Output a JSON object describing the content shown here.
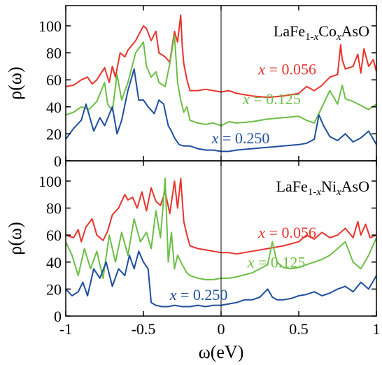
{
  "chart_data": [
    {
      "type": "line",
      "panel": "top",
      "title_parts": [
        "LaFe",
        "1-",
        "x",
        "Co",
        "x",
        "AsO"
      ],
      "ylabel": "ρ(ω)",
      "xlabel": "",
      "xlim": [
        -1,
        1
      ],
      "ylim": [
        0,
        115
      ],
      "yticks": [
        0,
        20,
        40,
        60,
        80,
        100
      ],
      "xticks": [
        -1,
        -0.5,
        0,
        0.5,
        1
      ],
      "vline_x": 0,
      "grid": false,
      "series": [
        {
          "name": "x = 0.056",
          "label_x": "x",
          "label_rest": " = 0.056",
          "color": "#e8342c",
          "x": [
            -1,
            -0.95,
            -0.9,
            -0.86,
            -0.83,
            -0.8,
            -0.75,
            -0.72,
            -0.7,
            -0.68,
            -0.65,
            -0.62,
            -0.6,
            -0.55,
            -0.5,
            -0.48,
            -0.45,
            -0.42,
            -0.4,
            -0.36,
            -0.33,
            -0.3,
            -0.28,
            -0.26,
            -0.25,
            -0.24,
            -0.22,
            -0.2,
            -0.15,
            -0.1,
            -0.05,
            0,
            0.05,
            0.1,
            0.2,
            0.3,
            0.4,
            0.5,
            0.55,
            0.6,
            0.65,
            0.7,
            0.75,
            0.77,
            0.78,
            0.8,
            0.85,
            0.88,
            0.9,
            0.92,
            0.95,
            0.98,
            1
          ],
          "y": [
            55,
            56,
            60,
            62,
            57,
            60,
            69,
            58,
            70,
            62,
            80,
            77,
            82,
            89,
            100,
            98,
            89,
            96,
            80,
            77,
            73,
            96,
            88,
            108,
            85,
            72,
            60,
            52,
            52,
            53,
            52,
            51,
            52,
            50,
            48,
            47,
            48,
            50,
            55,
            52,
            56,
            62,
            64,
            86,
            75,
            68,
            70,
            79,
            65,
            83,
            70,
            75,
            66
          ]
        },
        {
          "name": "x = 0.125",
          "label_x": "x",
          "label_rest": " = 0.125",
          "color": "#6cbe45",
          "x": [
            -1,
            -0.95,
            -0.9,
            -0.85,
            -0.8,
            -0.75,
            -0.73,
            -0.7,
            -0.67,
            -0.64,
            -0.6,
            -0.55,
            -0.5,
            -0.48,
            -0.45,
            -0.42,
            -0.4,
            -0.36,
            -0.33,
            -0.3,
            -0.28,
            -0.26,
            -0.24,
            -0.22,
            -0.2,
            -0.15,
            -0.1,
            -0.05,
            0,
            0.05,
            0.1,
            0.2,
            0.3,
            0.4,
            0.5,
            0.55,
            0.6,
            0.65,
            0.7,
            0.75,
            0.78,
            0.8,
            0.85,
            0.9,
            0.95,
            1
          ],
          "y": [
            34,
            36,
            40,
            38,
            44,
            58,
            42,
            37,
            64,
            45,
            58,
            80,
            88,
            70,
            62,
            66,
            58,
            55,
            72,
            93,
            58,
            45,
            36,
            40,
            30,
            28,
            27,
            28,
            26,
            29,
            28,
            29,
            31,
            32,
            33,
            30,
            28,
            40,
            52,
            42,
            56,
            46,
            44,
            41,
            38,
            42
          ]
        },
        {
          "name": "x = 0.250",
          "label_x": "x",
          "label_rest": " = 0.250",
          "color": "#1f4e9e",
          "x": [
            -1,
            -0.95,
            -0.9,
            -0.87,
            -0.82,
            -0.78,
            -0.75,
            -0.7,
            -0.67,
            -0.64,
            -0.6,
            -0.56,
            -0.53,
            -0.5,
            -0.47,
            -0.43,
            -0.4,
            -0.37,
            -0.34,
            -0.32,
            -0.3,
            -0.27,
            -0.24,
            -0.2,
            -0.15,
            -0.1,
            -0.05,
            0,
            0.05,
            0.1,
            0.2,
            0.3,
            0.4,
            0.5,
            0.55,
            0.6,
            0.63,
            0.66,
            0.7,
            0.75,
            0.8,
            0.85,
            0.9,
            0.95,
            1
          ],
          "y": [
            16,
            24,
            30,
            42,
            22,
            32,
            26,
            40,
            20,
            30,
            52,
            68,
            45,
            45,
            40,
            35,
            45,
            42,
            26,
            22,
            17,
            12,
            11,
            11,
            9,
            8,
            8,
            7,
            7,
            8,
            9,
            10,
            11,
            12,
            13,
            16,
            34,
            26,
            18,
            15,
            20,
            14,
            17,
            22,
            12
          ]
        }
      ],
      "annotation_values": [
        {
          "x": 0.24,
          "y": 64
        },
        {
          "x": 0.14,
          "y": 42
        },
        {
          "x": -0.06,
          "y": 13
        }
      ]
    },
    {
      "type": "line",
      "panel": "bottom",
      "title_parts": [
        "LaFe",
        "1-",
        "x",
        "Ni",
        "x",
        "AsO"
      ],
      "ylabel": "ρ(ω)",
      "xlabel": "ω(eV)",
      "xlim": [
        -1,
        1
      ],
      "ylim": [
        0,
        115
      ],
      "yticks": [
        0,
        20,
        40,
        60,
        80,
        100
      ],
      "xticks": [
        -1,
        -0.5,
        0,
        0.5,
        1
      ],
      "xtick_labels": [
        "-1",
        "-0.5",
        "0",
        "0.5",
        "1"
      ],
      "vline_x": 0,
      "grid": false,
      "series": [
        {
          "name": "x = 0.056",
          "label_x": "x",
          "label_rest": " = 0.056",
          "color": "#e8342c",
          "x": [
            -1,
            -0.95,
            -0.92,
            -0.9,
            -0.87,
            -0.83,
            -0.8,
            -0.76,
            -0.73,
            -0.7,
            -0.66,
            -0.62,
            -0.6,
            -0.57,
            -0.54,
            -0.51,
            -0.48,
            -0.45,
            -0.42,
            -0.39,
            -0.36,
            -0.33,
            -0.3,
            -0.28,
            -0.26,
            -0.24,
            -0.22,
            -0.2,
            -0.15,
            -0.1,
            -0.05,
            0,
            0.05,
            0.1,
            0.2,
            0.3,
            0.4,
            0.5,
            0.55,
            0.6,
            0.65,
            0.7,
            0.75,
            0.8,
            0.85,
            0.88,
            0.9,
            0.93,
            0.96,
            1
          ],
          "y": [
            60,
            58,
            64,
            55,
            66,
            72,
            60,
            56,
            63,
            75,
            80,
            90,
            86,
            88,
            80,
            92,
            78,
            95,
            85,
            82,
            92,
            76,
            100,
            80,
            102,
            70,
            60,
            52,
            50,
            49,
            48,
            47,
            47,
            46,
            48,
            50,
            52,
            55,
            60,
            57,
            62,
            58,
            60,
            65,
            58,
            70,
            60,
            68,
            58,
            60
          ]
        },
        {
          "name": "x = 0.125",
          "label_x": "x",
          "label_rest": " = 0.125",
          "color": "#6cbe45",
          "x": [
            -1,
            -0.96,
            -0.92,
            -0.88,
            -0.84,
            -0.8,
            -0.76,
            -0.72,
            -0.68,
            -0.64,
            -0.6,
            -0.56,
            -0.52,
            -0.48,
            -0.45,
            -0.42,
            -0.39,
            -0.36,
            -0.34,
            -0.32,
            -0.3,
            -0.28,
            -0.25,
            -0.22,
            -0.2,
            -0.15,
            -0.1,
            -0.05,
            0,
            0.05,
            0.1,
            0.2,
            0.3,
            0.33,
            0.36,
            0.4,
            0.45,
            0.5,
            0.55,
            0.6,
            0.65,
            0.7,
            0.75,
            0.8,
            0.85,
            0.9,
            0.95,
            1
          ],
          "y": [
            55,
            45,
            30,
            50,
            35,
            48,
            28,
            60,
            40,
            62,
            45,
            72,
            55,
            62,
            50,
            78,
            58,
            102,
            40,
            62,
            35,
            45,
            38,
            32,
            30,
            28,
            27,
            27,
            28,
            28,
            29,
            32,
            38,
            55,
            40,
            36,
            35,
            36,
            38,
            40,
            42,
            45,
            50,
            55,
            40,
            35,
            45,
            58
          ]
        },
        {
          "name": "x = 0.250",
          "label_x": "x",
          "label_rest": " = 0.250",
          "color": "#1f4e9e",
          "x": [
            -1,
            -0.96,
            -0.92,
            -0.89,
            -0.86,
            -0.82,
            -0.78,
            -0.74,
            -0.7,
            -0.66,
            -0.62,
            -0.59,
            -0.56,
            -0.53,
            -0.5,
            -0.47,
            -0.45,
            -0.42,
            -0.38,
            -0.34,
            -0.3,
            -0.25,
            -0.2,
            -0.15,
            -0.1,
            -0.05,
            0,
            0.05,
            0.1,
            0.15,
            0.2,
            0.25,
            0.3,
            0.33,
            0.36,
            0.4,
            0.45,
            0.5,
            0.55,
            0.6,
            0.65,
            0.7,
            0.75,
            0.8,
            0.85,
            0.9,
            0.95,
            1
          ],
          "y": [
            20,
            15,
            18,
            25,
            15,
            35,
            28,
            40,
            22,
            35,
            30,
            45,
            35,
            48,
            40,
            35,
            10,
            8,
            7,
            7,
            8,
            7,
            7,
            8,
            7,
            8,
            8,
            9,
            10,
            12,
            12,
            14,
            20,
            14,
            12,
            12,
            13,
            15,
            16,
            18,
            15,
            17,
            20,
            22,
            18,
            25,
            20,
            30
          ]
        }
      ],
      "annotation_values": [
        {
          "x": 0.24,
          "y": 58
        },
        {
          "x": 0.17,
          "y": 36
        },
        {
          "x": -0.33,
          "y": 12
        }
      ]
    }
  ]
}
